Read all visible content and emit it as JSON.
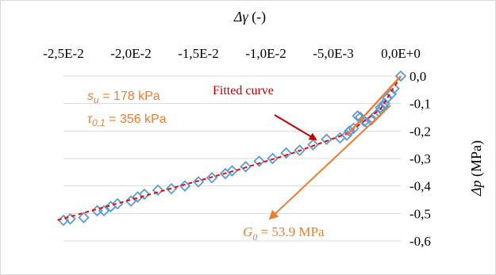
{
  "chart_data": {
    "type": "scatter",
    "title": "",
    "x_axis": {
      "label_symbol": "Δγ",
      "label_unit": " (-)",
      "range": [
        -0.025,
        0
      ],
      "ticks": [
        -0.025,
        -0.02,
        -0.015,
        -0.01,
        -0.005,
        0
      ],
      "tick_labels": [
        "-2,5E-2",
        "-2,0E-2",
        "-1,5E-2",
        "-1,0E-2",
        "-5,0E-3",
        "0,0E+0"
      ],
      "position": "top"
    },
    "y_axis": {
      "label_symbol": "Δp",
      "label_unit": " (MPa)",
      "range": [
        -0.6,
        0
      ],
      "ticks": [
        0,
        -0.1,
        -0.2,
        -0.3,
        -0.4,
        -0.5,
        -0.6
      ],
      "tick_labels": [
        "0,0",
        "-0,1",
        "-0,2",
        "-0,3",
        "-0,4",
        "-0,5",
        "-0,6"
      ],
      "position": "right"
    },
    "grid": true,
    "legend": "none",
    "series": [
      {
        "marker": "diamond",
        "color": "#5b9bd5",
        "points": [
          [
            0,
            0
          ],
          [
            -0.0005,
            -0.045
          ],
          [
            -0.0007,
            -0.065
          ],
          [
            -0.001,
            -0.08
          ],
          [
            -0.0012,
            -0.1
          ],
          [
            -0.0013,
            -0.11
          ],
          [
            -0.0015,
            -0.115
          ],
          [
            -0.0016,
            -0.13
          ],
          [
            -0.0018,
            -0.14
          ],
          [
            -0.0022,
            -0.16
          ],
          [
            -0.0025,
            -0.17
          ],
          [
            -0.0027,
            -0.165
          ],
          [
            -0.003,
            -0.15
          ],
          [
            -0.0032,
            -0.145
          ],
          [
            -0.0035,
            -0.19
          ],
          [
            -0.0038,
            -0.2
          ],
          [
            -0.004,
            -0.215
          ],
          [
            -0.0045,
            -0.225
          ],
          [
            -0.0055,
            -0.23
          ],
          [
            -0.0065,
            -0.25
          ],
          [
            -0.0075,
            -0.27
          ],
          [
            -0.0085,
            -0.28
          ],
          [
            -0.0095,
            -0.3
          ],
          [
            -0.0105,
            -0.31
          ],
          [
            -0.0115,
            -0.33
          ],
          [
            -0.0125,
            -0.345
          ],
          [
            -0.013,
            -0.355
          ],
          [
            -0.014,
            -0.37
          ],
          [
            -0.015,
            -0.385
          ],
          [
            -0.016,
            -0.4
          ],
          [
            -0.017,
            -0.41
          ],
          [
            -0.018,
            -0.415
          ],
          [
            -0.019,
            -0.43
          ],
          [
            -0.0195,
            -0.44
          ],
          [
            -0.02,
            -0.455
          ],
          [
            -0.021,
            -0.465
          ],
          [
            -0.0215,
            -0.475
          ],
          [
            -0.022,
            -0.49
          ],
          [
            -0.0225,
            -0.49
          ],
          [
            -0.0235,
            -0.515
          ],
          [
            -0.0245,
            -0.52
          ],
          [
            -0.025,
            -0.525
          ]
        ]
      }
    ],
    "fitted_curve": {
      "color": "#ff0000",
      "style": "dashed",
      "points": [
        [
          0,
          0
        ],
        [
          -0.0015,
          -0.12
        ],
        [
          -0.004,
          -0.21
        ],
        [
          -0.008,
          -0.28
        ],
        [
          -0.012,
          -0.34
        ],
        [
          -0.016,
          -0.395
        ],
        [
          -0.02,
          -0.45
        ],
        [
          -0.0255,
          -0.525
        ]
      ]
    },
    "initial_slope_line": {
      "color": "#ed7d31",
      "points": [
        [
          0,
          0
        ],
        [
          -0.004,
          -0.215
        ]
      ]
    },
    "annotations": {
      "fitted_curve_label": "Fitted curve",
      "su_symbol": "s",
      "su_sub": "u",
      "su_text": " = 178 kPa",
      "tau_symbol": "τ",
      "tau_sub": "0,1",
      "tau_text": " = 356 kPa",
      "g0_symbol": "G",
      "g0_sub": "0",
      "g0_text": " = 53.9 MPa"
    },
    "colors": {
      "marker": "#5b9bd5",
      "fit": "#ff0000",
      "annotation": "#ed7d31",
      "fit_label": "#c00000"
    }
  }
}
